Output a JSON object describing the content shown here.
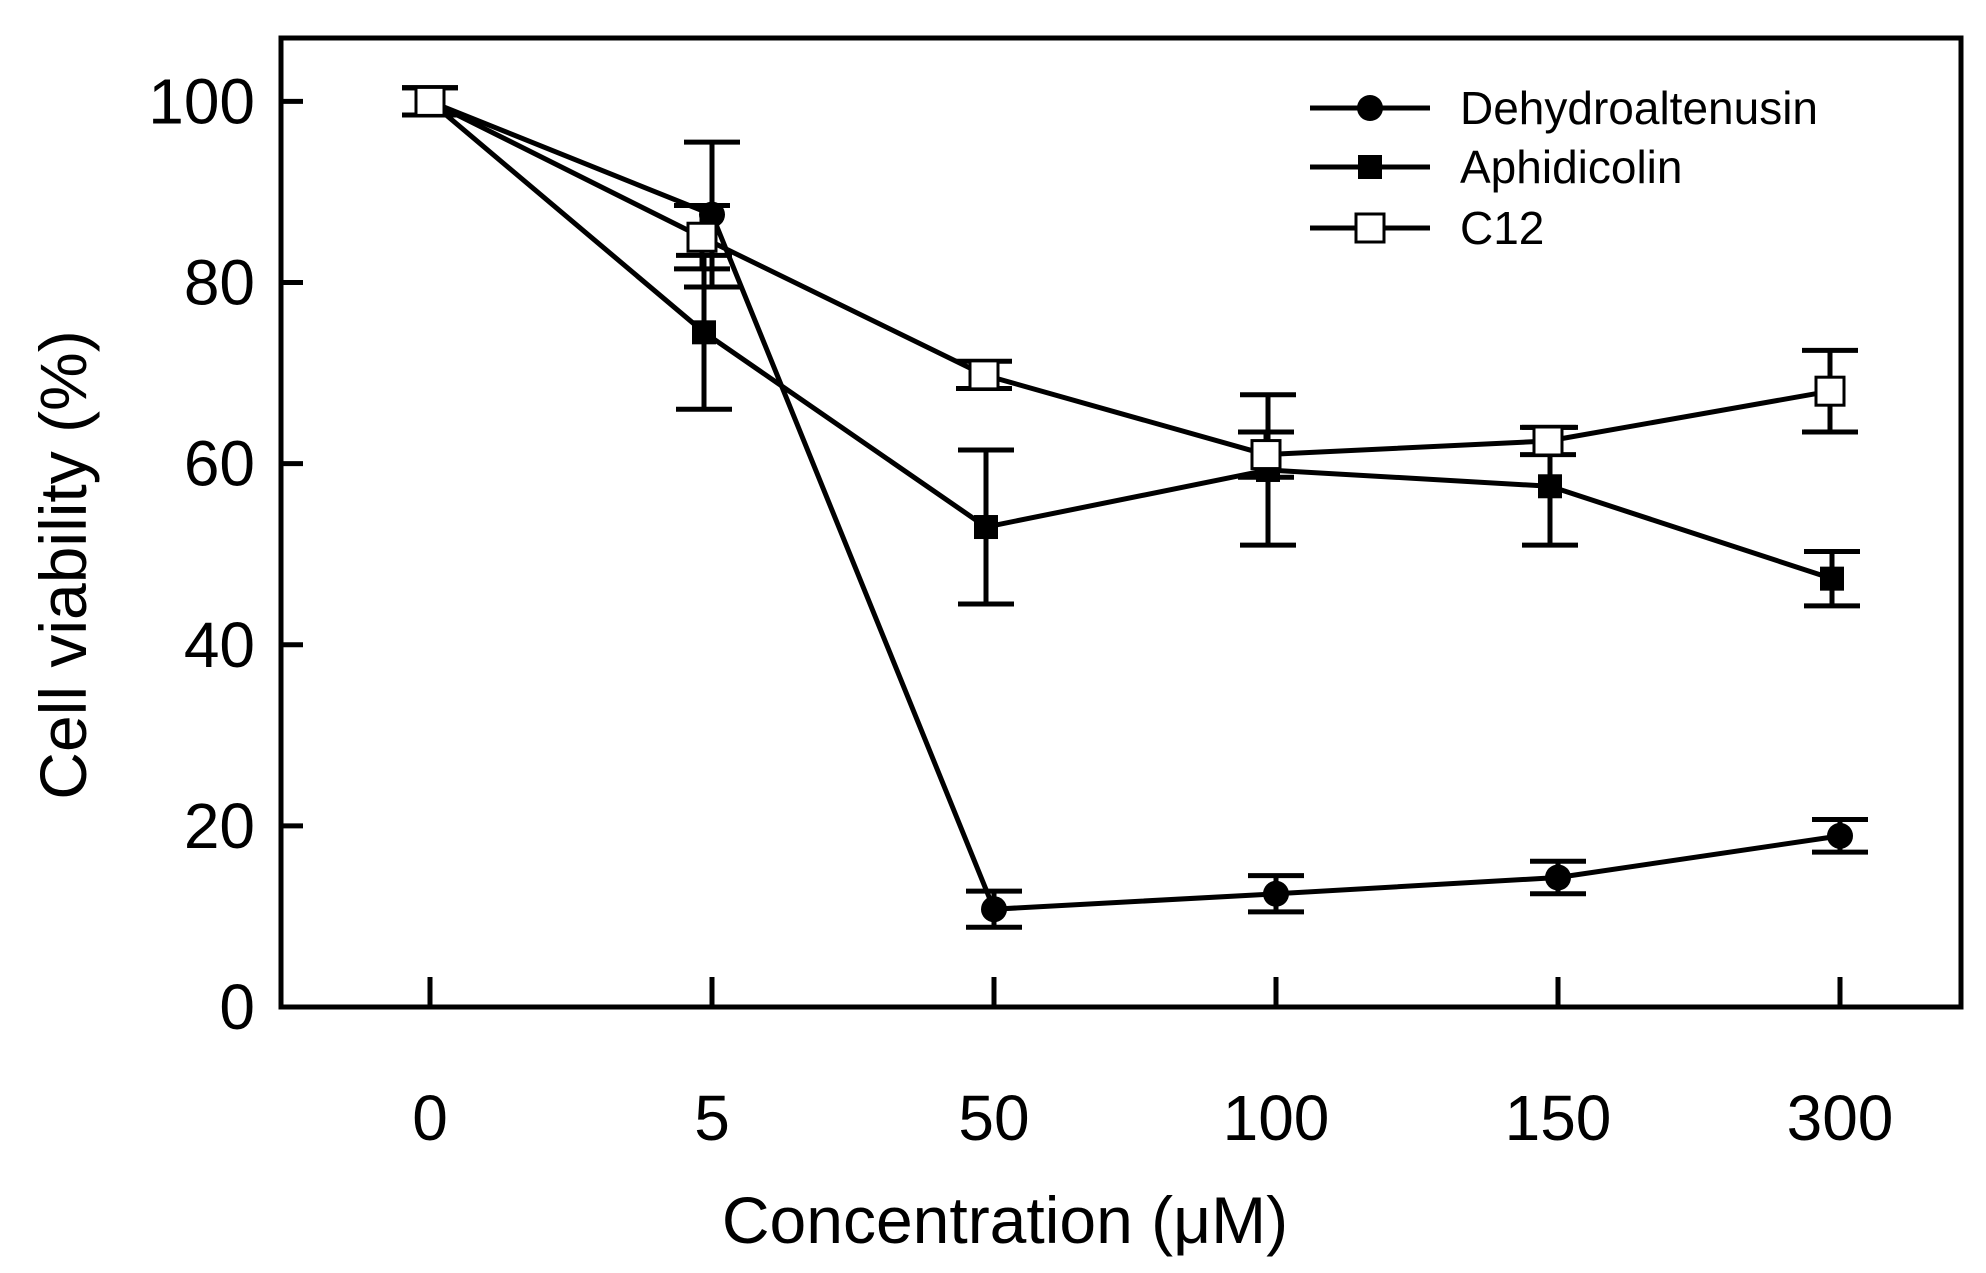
{
  "chart_data": {
    "type": "line",
    "title": "",
    "xlabel": "Concentration (μM)",
    "ylabel": "Cell viability (%)",
    "x_categories": [
      "0",
      "5",
      "50",
      "100",
      "150",
      "300"
    ],
    "ylim": [
      0,
      107
    ],
    "y_ticks": [
      "0",
      "20",
      "40",
      "60",
      "80",
      "100"
    ],
    "grid": false,
    "legend_position": "top-right",
    "series": [
      {
        "name": "Dehydroaltenusin",
        "marker": "filled-circle",
        "color": "#000000",
        "values": [
          100,
          87.5,
          10.8,
          12.5,
          14.3,
          18.9
        ],
        "errors": [
          1.5,
          8.0,
          2.0,
          2.0,
          1.8,
          1.8
        ]
      },
      {
        "name": "Aphidicolin",
        "marker": "filled-square",
        "color": "#000000",
        "values": [
          100,
          74.5,
          53.0,
          59.3,
          57.5,
          47.3
        ],
        "errors": [
          1.5,
          8.5,
          8.5,
          8.3,
          6.5,
          3.0
        ]
      },
      {
        "name": "C12",
        "marker": "open-square",
        "color": "#000000",
        "values": [
          100,
          85.0,
          69.8,
          61.0,
          62.5,
          68.0
        ],
        "errors": [
          1.5,
          3.5,
          1.5,
          2.5,
          1.5,
          4.5
        ]
      }
    ]
  }
}
